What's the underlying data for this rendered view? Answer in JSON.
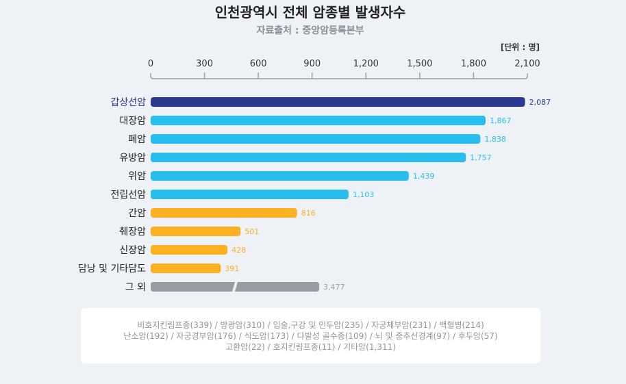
{
  "chart_data": {
    "type": "bar",
    "orientation": "horizontal",
    "title": "인천광역시 전체 암종별 발생자수",
    "subtitle": "자료출처 : 중앙암등록본부",
    "unit_label": "[단위 : 명]",
    "xlim": [
      0,
      2100
    ],
    "ticks": [
      0,
      300,
      600,
      900,
      1200,
      1500,
      1800,
      2100
    ],
    "tick_labels": [
      "0",
      "300",
      "600",
      "900",
      "1,200",
      "1,500",
      "1,800",
      "2,100"
    ],
    "categories": [
      "갑상선암",
      "대장암",
      "폐암",
      "유방암",
      "위암",
      "전립선암",
      "간암",
      "췌장암",
      "신장암",
      "담낭 및 기타담도",
      "그 외"
    ],
    "values": [
      2087,
      1867,
      1838,
      1757,
      1439,
      1103,
      816,
      501,
      428,
      391,
      3477
    ],
    "value_labels": [
      "2,087",
      "1,867",
      "1,838",
      "1,757",
      "1,439",
      "1,103",
      "816",
      "501",
      "428",
      "391",
      "3,477"
    ],
    "bar_colors": [
      "#2b3990",
      "#27bdec",
      "#27bdec",
      "#27bdec",
      "#27bdec",
      "#27bdec",
      "#fbb122",
      "#fbb122",
      "#fbb122",
      "#fbb122",
      "#9a9ca3"
    ],
    "label_colors": [
      "#2b3990",
      "#222222",
      "#222222",
      "#222222",
      "#222222",
      "#222222",
      "#222222",
      "#222222",
      "#222222",
      "#222222",
      "#222222"
    ],
    "value_label_colors": [
      "#2b3990",
      "#27bdec",
      "#27bdec",
      "#27bdec",
      "#27bdec",
      "#27bdec",
      "#fbb122",
      "#fbb122",
      "#fbb122",
      "#fbb122",
      "#9a9ca3"
    ],
    "broken_bar_index": 10
  },
  "footnote": {
    "lines": [
      "비호지킨림프종(339) / 방광암(310) /  입술,구강 및 인두암(235) / 자궁체부암(231) / 백혈병(214)",
      "난소암(192) / 자궁경부암(176) / 식도암(173) / 다발성 골수종(109) / 뇌 및 중추신경계(97) / 후두암(57)",
      "고환암(22) / 호지킨림프종(11) / 기타암(1,311)"
    ]
  }
}
